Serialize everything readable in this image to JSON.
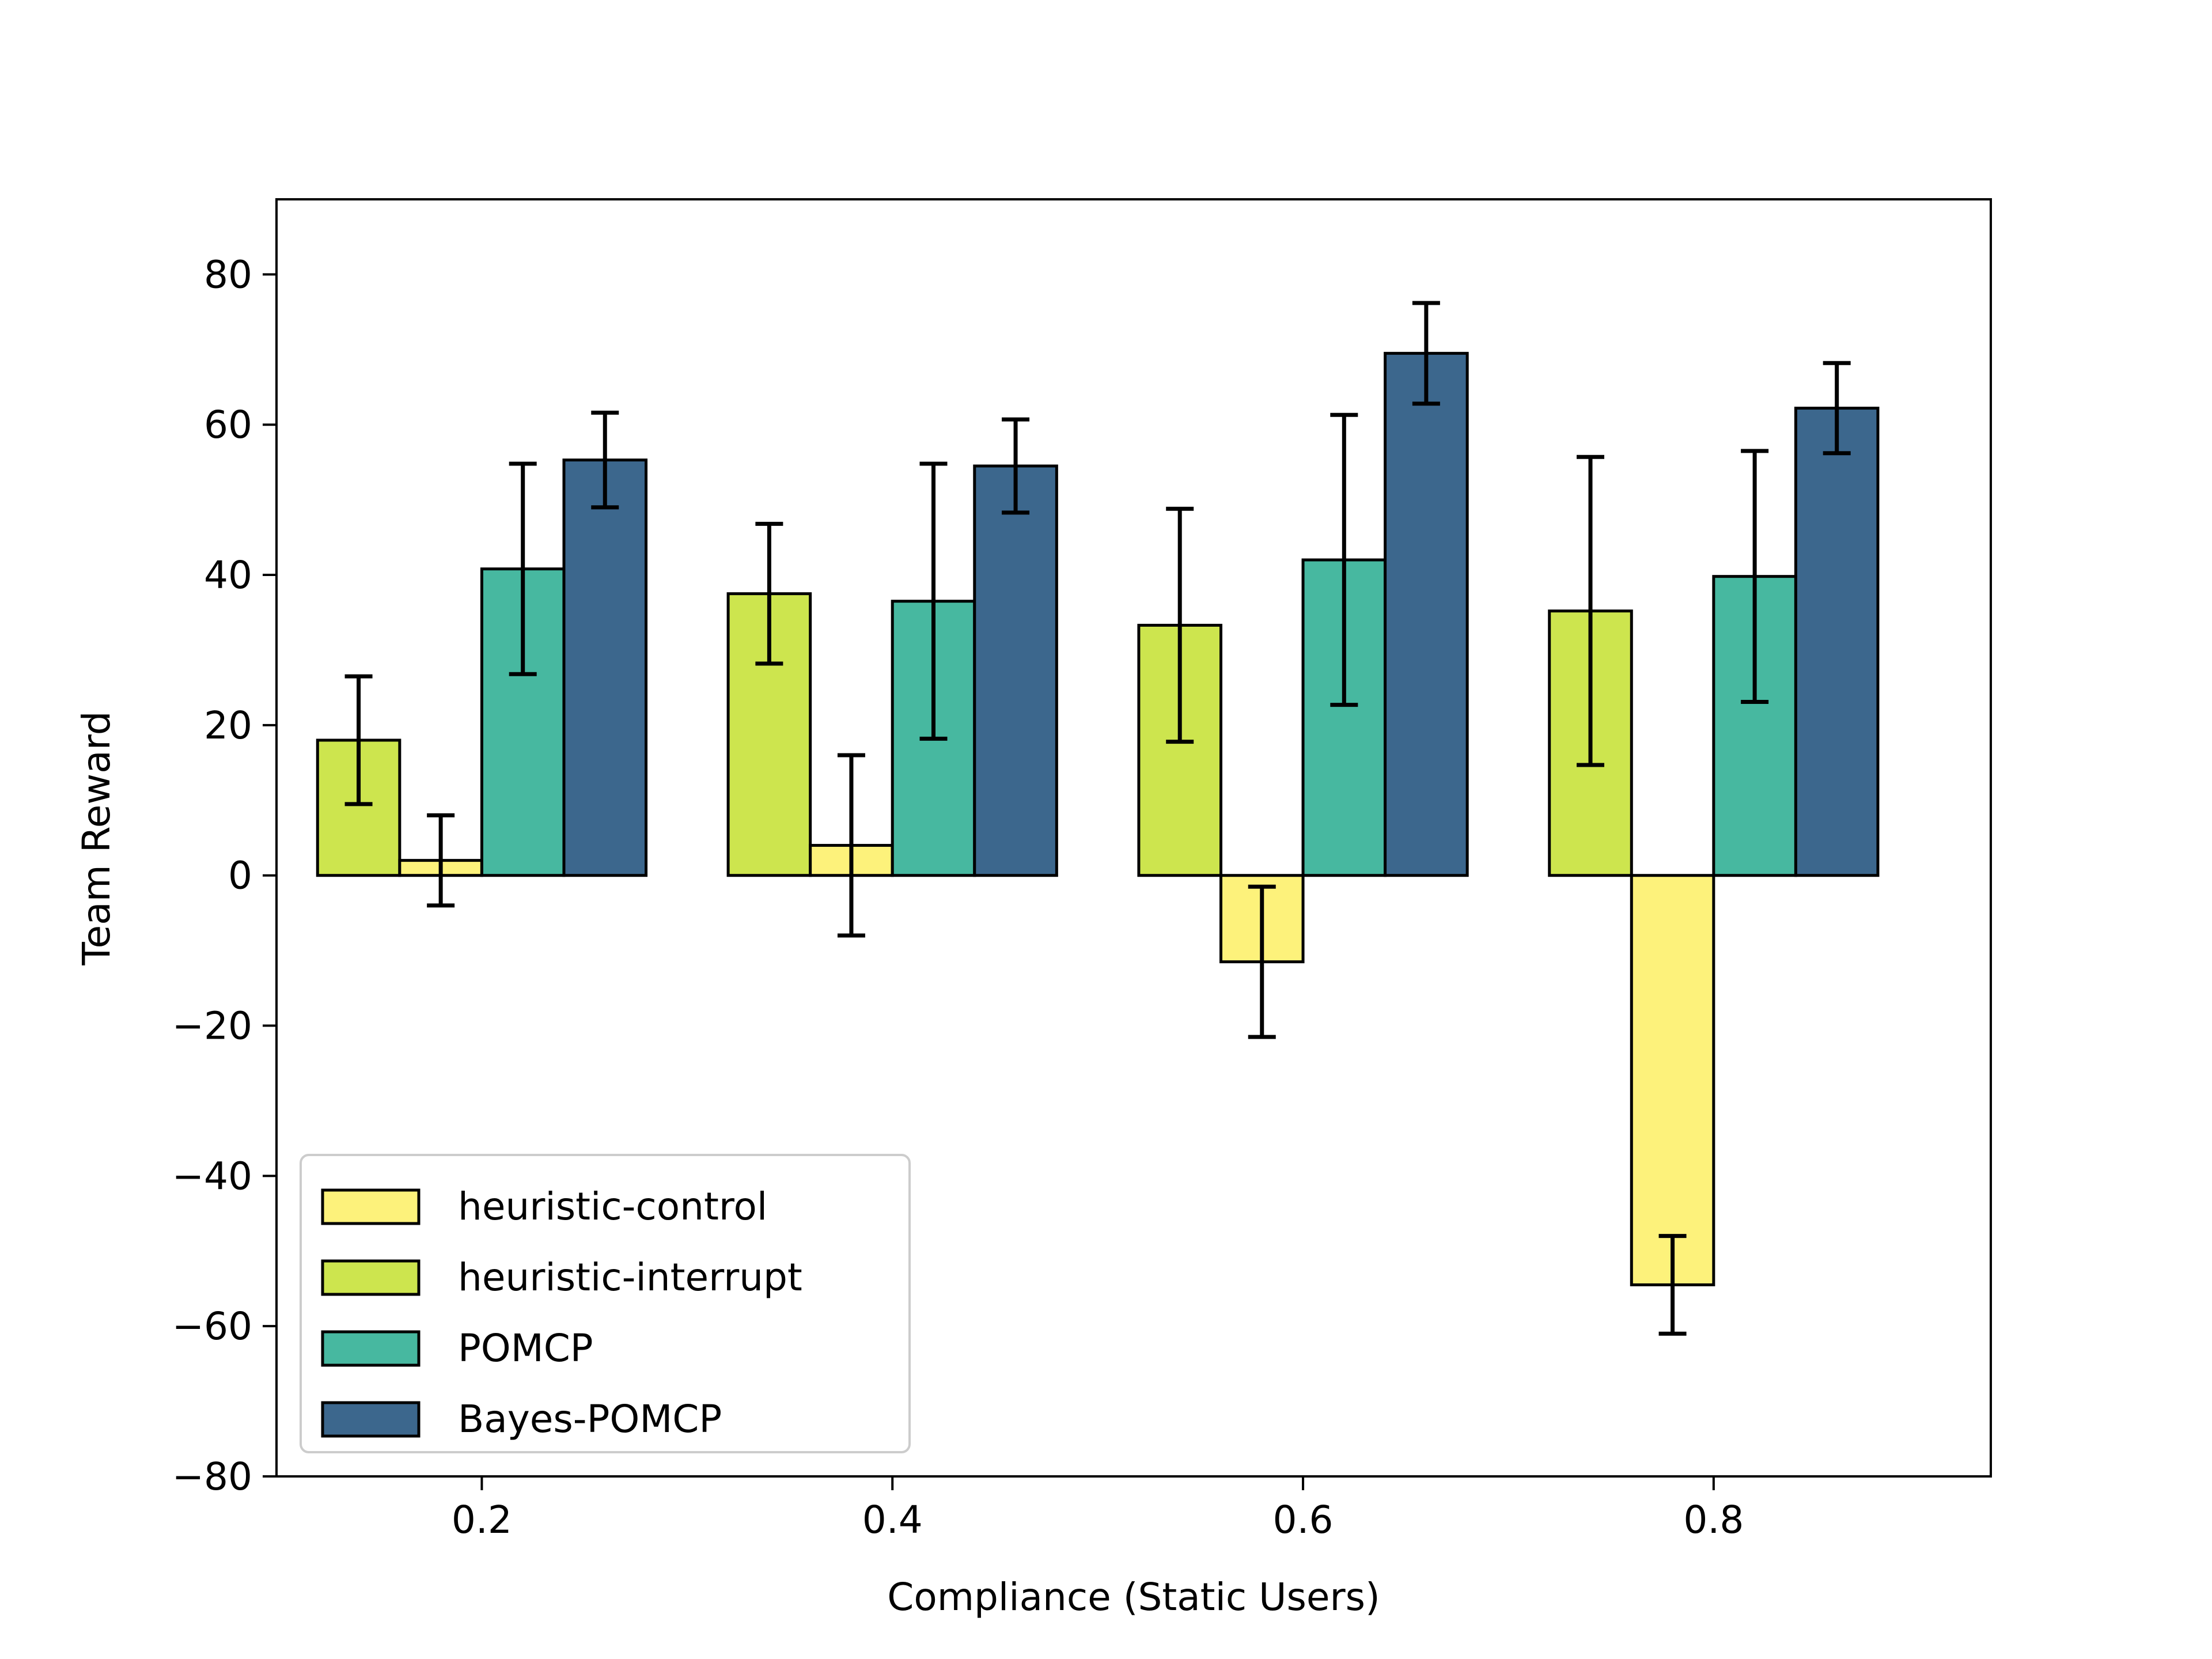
{
  "chart_data": {
    "type": "bar",
    "title": "",
    "xlabel": "Compliance (Static Users)",
    "ylabel": "Team Reward",
    "categories": [
      "0.2",
      "0.4",
      "0.6",
      "0.8"
    ],
    "x": [
      0.2,
      0.4,
      0.6,
      0.8
    ],
    "xlim": [
      0.1,
      0.935
    ],
    "ylim": [
      -80,
      90
    ],
    "xticks": [
      "0.2",
      "0.4",
      "0.6",
      "0.8"
    ],
    "yticks": [
      80,
      60,
      40,
      20,
      0,
      -20,
      -40,
      -60,
      -80
    ],
    "ytick_labels": [
      "80",
      "60",
      "40",
      "20",
      "0",
      "−20",
      "−40",
      "−60",
      "−80"
    ],
    "grid": false,
    "legend_position": "lower-left",
    "series": [
      {
        "name": "heuristic-control",
        "color": "#fdf27b",
        "values": [
          2,
          4,
          -11.5,
          -54.5
        ],
        "errors": [
          6,
          12,
          10,
          6.5
        ]
      },
      {
        "name": "heuristic-interrupt",
        "color": "#cde54e",
        "values": [
          18,
          37.5,
          33.3,
          35.2
        ],
        "errors": [
          8.5,
          9.3,
          15.5,
          20.5
        ]
      },
      {
        "name": "POMCP",
        "color": "#47b8a0",
        "values": [
          40.8,
          36.5,
          42,
          39.8
        ],
        "errors": [
          14,
          18.3,
          19.3,
          16.7
        ]
      },
      {
        "name": "Bayes-POMCP",
        "color": "#3c678d",
        "values": [
          55.3,
          54.5,
          69.5,
          62.2
        ],
        "errors": [
          6.3,
          6.2,
          6.7,
          6
        ]
      }
    ],
    "bar_order": [
      "heuristic-interrupt",
      "heuristic-control",
      "POMCP",
      "Bayes-POMCP"
    ]
  }
}
